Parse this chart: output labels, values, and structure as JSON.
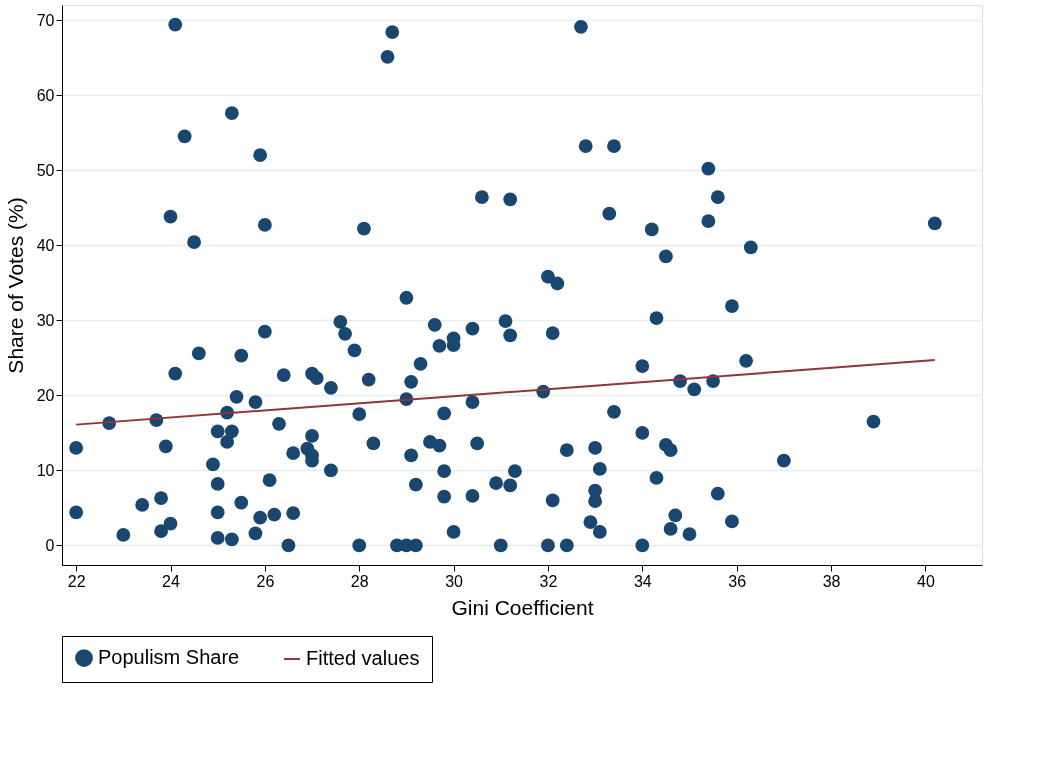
{
  "chart_data": {
    "type": "scatter",
    "xlabel": "Gini Coefficient",
    "ylabel": "Share of Votes (%)",
    "xlim": [
      21.7,
      41.2
    ],
    "xticks": [
      22,
      24,
      26,
      28,
      30,
      32,
      34,
      36,
      38,
      40
    ],
    "ylim": [
      -2.6,
      72
    ],
    "yticks": [
      0,
      10,
      20,
      30,
      40,
      50,
      60,
      70
    ],
    "grid": "y",
    "legend": "bottom",
    "series": [
      {
        "name": "Populism Share",
        "marker": "circle",
        "color": "#1a476f",
        "x": [
          22.0,
          22.0,
          22.7,
          23.0,
          23.4,
          23.7,
          23.8,
          23.8,
          23.9,
          24.0,
          24.0,
          24.1,
          24.1,
          24.3,
          24.5,
          24.6,
          24.9,
          25.0,
          25.0,
          25.0,
          25.0,
          25.2,
          25.2,
          25.3,
          25.3,
          25.3,
          25.4,
          25.5,
          25.5,
          25.8,
          25.8,
          25.9,
          25.9,
          26.0,
          26.0,
          26.1,
          26.2,
          26.3,
          26.4,
          26.5,
          26.6,
          26.6,
          26.9,
          27.0,
          27.0,
          27.0,
          27.0,
          27.1,
          27.4,
          27.4,
          27.6,
          27.7,
          27.9,
          28.0,
          28.0,
          28.1,
          28.2,
          28.3,
          28.6,
          28.7,
          28.8,
          29.0,
          29.0,
          29.0,
          29.1,
          29.1,
          29.2,
          29.2,
          29.3,
          29.5,
          29.6,
          29.7,
          29.7,
          29.8,
          29.8,
          29.8,
          30.0,
          30.0,
          30.0,
          30.4,
          30.4,
          30.4,
          30.5,
          30.6,
          30.9,
          31.0,
          31.1,
          31.2,
          31.2,
          31.2,
          31.3,
          31.9,
          32.0,
          32.0,
          32.1,
          32.1,
          32.2,
          32.4,
          32.4,
          32.7,
          32.8,
          32.9,
          33.0,
          33.0,
          33.0,
          33.1,
          33.1,
          33.3,
          33.4,
          33.4,
          34.0,
          34.0,
          34.0,
          34.2,
          34.3,
          34.3,
          34.5,
          34.5,
          34.6,
          34.6,
          34.7,
          34.8,
          35.0,
          35.1,
          35.4,
          35.4,
          35.5,
          35.6,
          35.6,
          35.9,
          35.9,
          36.2,
          36.3,
          37.0,
          38.9,
          40.2
        ],
        "values": [
          13.0,
          4.4,
          16.3,
          1.4,
          5.4,
          16.7,
          1.9,
          6.3,
          13.2,
          2.9,
          43.8,
          69.4,
          22.9,
          54.5,
          40.4,
          25.6,
          10.8,
          15.2,
          8.2,
          4.4,
          1.0,
          13.8,
          17.7,
          15.2,
          0.8,
          57.6,
          19.8,
          25.3,
          5.7,
          19.1,
          1.6,
          3.7,
          52.0,
          42.7,
          28.5,
          8.7,
          4.1,
          16.2,
          22.7,
          0,
          4.3,
          12.3,
          12.9,
          22.9,
          14.6,
          12.0,
          11.3,
          22.3,
          21.0,
          10.0,
          29.8,
          28.2,
          26.0,
          17.5,
          0,
          42.2,
          22.1,
          13.6,
          65.1,
          68.4,
          0,
          0,
          19.5,
          33.0,
          21.8,
          12.0,
          8.1,
          0,
          24.2,
          13.8,
          29.4,
          13.3,
          26.6,
          17.6,
          9.9,
          6.5,
          27.6,
          26.7,
          1.8,
          28.9,
          19.1,
          6.6,
          13.6,
          46.4,
          8.3,
          0,
          29.9,
          28.0,
          46.1,
          8.0,
          9.9,
          20.5,
          35.8,
          0,
          28.3,
          6.0,
          34.9,
          12.7,
          0,
          69.1,
          53.2,
          3.1,
          13.0,
          7.3,
          5.9,
          1.8,
          10.2,
          44.2,
          53.2,
          17.8,
          23.9,
          15.0,
          0,
          42.1,
          30.3,
          9.0,
          38.5,
          13.4,
          12.7,
          2.2,
          4.0,
          21.9,
          1.5,
          20.8,
          50.2,
          43.2,
          21.9,
          46.4,
          6.9,
          31.9,
          3.2,
          24.6,
          39.7,
          11.3,
          16.5,
          42.9
        ]
      },
      {
        "name": "Fitted values",
        "type": "line",
        "color": "#90353b",
        "line_style": "solid",
        "x": [
          22.0,
          40.2
        ],
        "values": [
          16.1,
          24.7
        ]
      }
    ]
  }
}
